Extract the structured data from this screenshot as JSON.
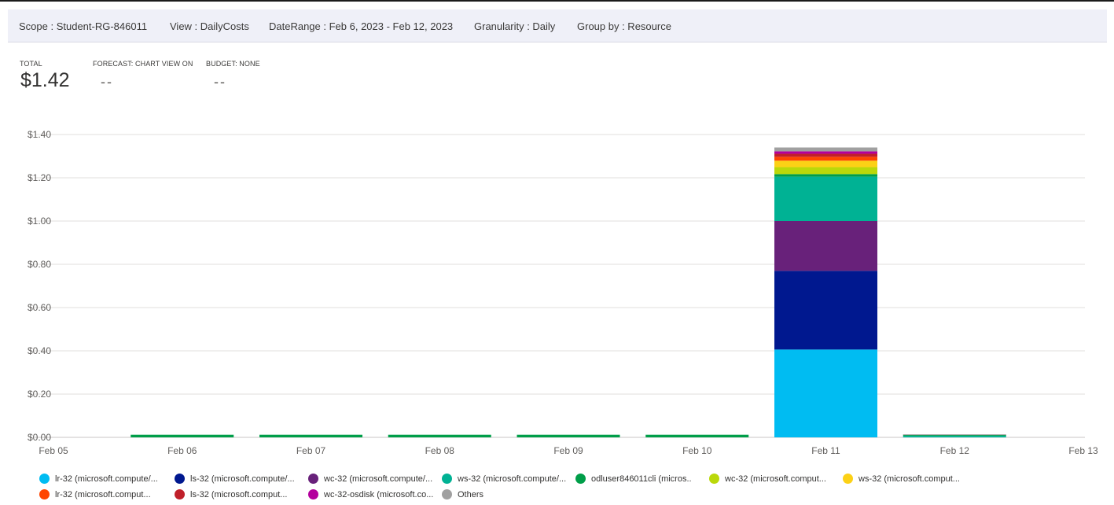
{
  "header": {
    "scope": "Scope : Student-RG-846011",
    "view": "View : DailyCosts",
    "date_range": "DateRange : Feb 6, 2023 - Feb 12, 2023",
    "granularity": "Granularity : Daily",
    "group_by": "Group by : Resource"
  },
  "metrics": {
    "total_label": "TOTAL",
    "total_value": "$1.42",
    "forecast_label": "FORECAST: CHART VIEW ON",
    "forecast_value": "--",
    "budget_label": "BUDGET: NONE",
    "budget_value": "--"
  },
  "chart_data": {
    "type": "bar",
    "stacked": true,
    "grid": true,
    "ylim": [
      0,
      1.4
    ],
    "y_ticks": [
      "$0.00",
      "$0.20",
      "$0.40",
      "$0.60",
      "$0.80",
      "$1.00",
      "$1.20",
      "$1.40"
    ],
    "x_ticks": [
      "Feb 05",
      "Feb 06",
      "Feb 07",
      "Feb 08",
      "Feb 09",
      "Feb 10",
      "Feb 11",
      "Feb 12",
      "Feb 13"
    ],
    "categories": [
      "Feb 06",
      "Feb 07",
      "Feb 08",
      "Feb 09",
      "Feb 10",
      "Feb 11",
      "Feb 12"
    ],
    "legend_position": "bottom",
    "series": [
      {
        "name": "lr-32 (microsoft.compute/...",
        "color": "#00bcf2",
        "values": [
          0,
          0,
          0,
          0,
          0,
          0.406,
          0
        ]
      },
      {
        "name": "ls-32 (microsoft.compute/...",
        "color": "#00188f",
        "values": [
          0,
          0,
          0,
          0,
          0,
          0.364,
          0
        ]
      },
      {
        "name": "wc-32 (microsoft.compute/...",
        "color": "#68217a",
        "values": [
          0,
          0,
          0,
          0,
          0,
          0.23,
          0
        ]
      },
      {
        "name": "ws-32 (microsoft.compute/...",
        "color": "#00b294",
        "values": [
          0,
          0,
          0,
          0,
          0,
          0.205,
          0.007
        ]
      },
      {
        "name": "odluser846011cli (micros..",
        "color": "#009e49",
        "values": [
          0.012,
          0.012,
          0.012,
          0.012,
          0.012,
          0.012,
          0.005
        ]
      },
      {
        "name": "wc-32 (microsoft.comput...",
        "color": "#bad80a",
        "values": [
          0,
          0,
          0,
          0,
          0,
          0.032,
          0
        ]
      },
      {
        "name": "ws-32 (microsoft.comput...",
        "color": "#fcd116",
        "values": [
          0,
          0,
          0,
          0,
          0,
          0.03,
          0
        ]
      },
      {
        "name": "lr-32 (microsoft.comput...",
        "color": "#ff4500",
        "values": [
          0,
          0,
          0,
          0,
          0,
          0.018,
          0
        ]
      },
      {
        "name": "ls-32 (microsoft.comput...",
        "color": "#c0202a",
        "values": [
          0,
          0,
          0,
          0,
          0,
          0.014,
          0
        ]
      },
      {
        "name": "wc-32-osdisk (microsoft.co...",
        "color": "#b4009e",
        "values": [
          0,
          0,
          0,
          0,
          0,
          0.011,
          0
        ]
      },
      {
        "name": "Others",
        "color": "#a0a0a0",
        "values": [
          0,
          0,
          0,
          0,
          0,
          0.018,
          0.002
        ]
      }
    ]
  }
}
